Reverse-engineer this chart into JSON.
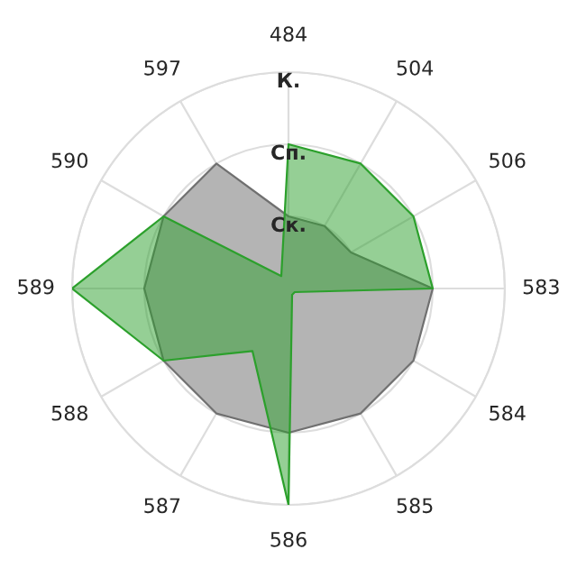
{
  "chart_data": {
    "type": "radar",
    "categories": [
      "484",
      "504",
      "506",
      "583",
      "584",
      "585",
      "586",
      "587",
      "588",
      "589",
      "590",
      "597"
    ],
    "series": [
      {
        "color": "#b4b4b4",
        "values": [
          1,
          1,
          1,
          2,
          2,
          2,
          2,
          2,
          2,
          2,
          2,
          2
        ]
      },
      {
        "color": "#2ca02c",
        "values": [
          2,
          2,
          2,
          2,
          0.1,
          0.1,
          3,
          1,
          2,
          3,
          2,
          0.2
        ]
      }
    ],
    "ylim": [
      0,
      3
    ],
    "yticks": [
      {
        "value": 1,
        "label": "Ск."
      },
      {
        "value": 2,
        "label": "Сп."
      },
      {
        "value": 3,
        "label": "К."
      }
    ],
    "grid": true,
    "legend": false,
    "marker": "none",
    "line_style": "solid"
  }
}
